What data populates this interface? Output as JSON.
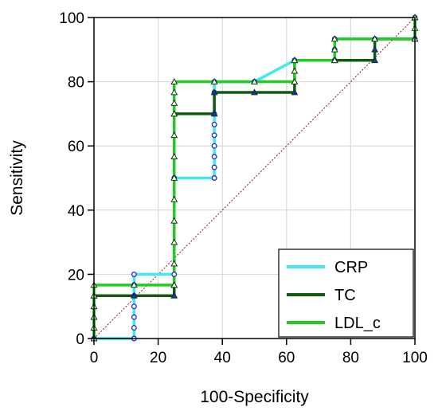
{
  "chart_data": {
    "type": "line",
    "xlabel": "100-Specificity",
    "ylabel": "Sensitivity",
    "xlim": [
      0,
      100
    ],
    "ylim": [
      0,
      100
    ],
    "xticks": [
      "0",
      "20",
      "40",
      "60",
      "80",
      "100"
    ],
    "yticks": [
      "0",
      "20",
      "40",
      "60",
      "80",
      "100"
    ],
    "legend_position": "bottom-right",
    "diagonal_color": "#8b1a1a",
    "series": [
      {
        "name": "CRP",
        "color": "#40e8f0",
        "marker": "circle",
        "marker_color": "#1a2cc8",
        "points": [
          [
            0,
            0
          ],
          [
            12.5,
            0
          ],
          [
            12.5,
            3.33
          ],
          [
            12.5,
            6.67
          ],
          [
            12.5,
            10
          ],
          [
            12.5,
            13.33
          ],
          [
            12.5,
            16.67
          ],
          [
            12.5,
            20
          ],
          [
            25,
            20
          ],
          [
            25,
            50
          ],
          [
            37.5,
            50
          ],
          [
            37.5,
            53.33
          ],
          [
            37.5,
            56.67
          ],
          [
            37.5,
            60
          ],
          [
            37.5,
            63.33
          ],
          [
            37.5,
            66.67
          ],
          [
            37.5,
            70
          ],
          [
            37.5,
            76.67
          ],
          [
            37.5,
            80
          ],
          [
            50,
            80
          ],
          [
            62.5,
            86.67
          ],
          [
            75,
            86.67
          ],
          [
            75,
            90
          ],
          [
            75,
            93.33
          ],
          [
            87.5,
            93.33
          ],
          [
            100,
            93.33
          ],
          [
            100,
            100
          ]
        ]
      },
      {
        "name": "TC",
        "color": "#0f5a0f",
        "marker": "triangle",
        "marker_color": "#1a2cc8",
        "points": [
          [
            0,
            0
          ],
          [
            0,
            3.33
          ],
          [
            0,
            6.67
          ],
          [
            0,
            10
          ],
          [
            0,
            13.33
          ],
          [
            12.5,
            13.33
          ],
          [
            25,
            13.33
          ],
          [
            25,
            16.67
          ],
          [
            25,
            70
          ],
          [
            37.5,
            70
          ],
          [
            37.5,
            76.67
          ],
          [
            50,
            76.67
          ],
          [
            62.5,
            76.67
          ],
          [
            62.5,
            80
          ],
          [
            62.5,
            86.67
          ],
          [
            75,
            86.67
          ],
          [
            87.5,
            86.67
          ],
          [
            87.5,
            90
          ],
          [
            87.5,
            93.33
          ],
          [
            100,
            93.33
          ],
          [
            100,
            100
          ]
        ]
      },
      {
        "name": "LDL_c",
        "color": "#22cc22",
        "marker": "triangle",
        "marker_color": "#ffffff",
        "points": [
          [
            0,
            0
          ],
          [
            0,
            3.33
          ],
          [
            0,
            6.67
          ],
          [
            0,
            10
          ],
          [
            0,
            13.33
          ],
          [
            0,
            16.67
          ],
          [
            12.5,
            16.67
          ],
          [
            25,
            16.67
          ],
          [
            25,
            23.33
          ],
          [
            25,
            30
          ],
          [
            25,
            36.67
          ],
          [
            25,
            43.33
          ],
          [
            25,
            50
          ],
          [
            25,
            56.67
          ],
          [
            25,
            63.33
          ],
          [
            25,
            70
          ],
          [
            25,
            73.33
          ],
          [
            25,
            76.67
          ],
          [
            25,
            80
          ],
          [
            37.5,
            80
          ],
          [
            50,
            80
          ],
          [
            62.5,
            80
          ],
          [
            62.5,
            83.33
          ],
          [
            62.5,
            86.67
          ],
          [
            75,
            86.67
          ],
          [
            75,
            90
          ],
          [
            75,
            93.33
          ],
          [
            87.5,
            93.33
          ],
          [
            100,
            93.33
          ],
          [
            100,
            96.67
          ],
          [
            100,
            100
          ]
        ]
      }
    ]
  }
}
